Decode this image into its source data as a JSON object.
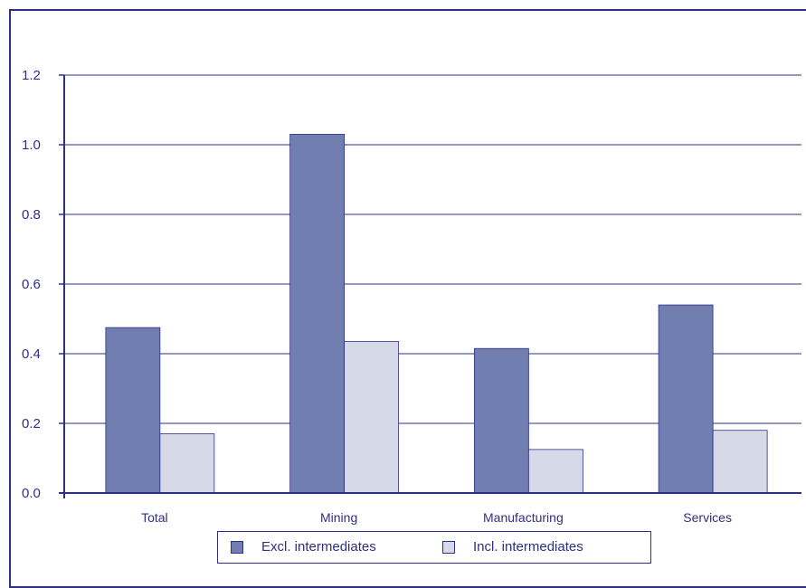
{
  "chart_data": {
    "type": "bar",
    "categories": [
      "Total",
      "Mining",
      "Manufacturing",
      "Services"
    ],
    "series": [
      {
        "name": "Excl. intermediates",
        "values": [
          0.475,
          1.03,
          0.415,
          0.54
        ],
        "color": "#717eb0"
      },
      {
        "name": "Incl. intermediates",
        "values": [
          0.17,
          0.435,
          0.125,
          0.18
        ],
        "color": "#d6d9e8"
      }
    ],
    "yticks": [
      "0.0",
      "0.2",
      "0.4",
      "0.6",
      "0.8",
      "1.0",
      "1.2"
    ],
    "ylim": [
      0,
      1.2
    ],
    "grid": true,
    "legend_position": "bottom",
    "axis_color": "#2e2f86"
  }
}
